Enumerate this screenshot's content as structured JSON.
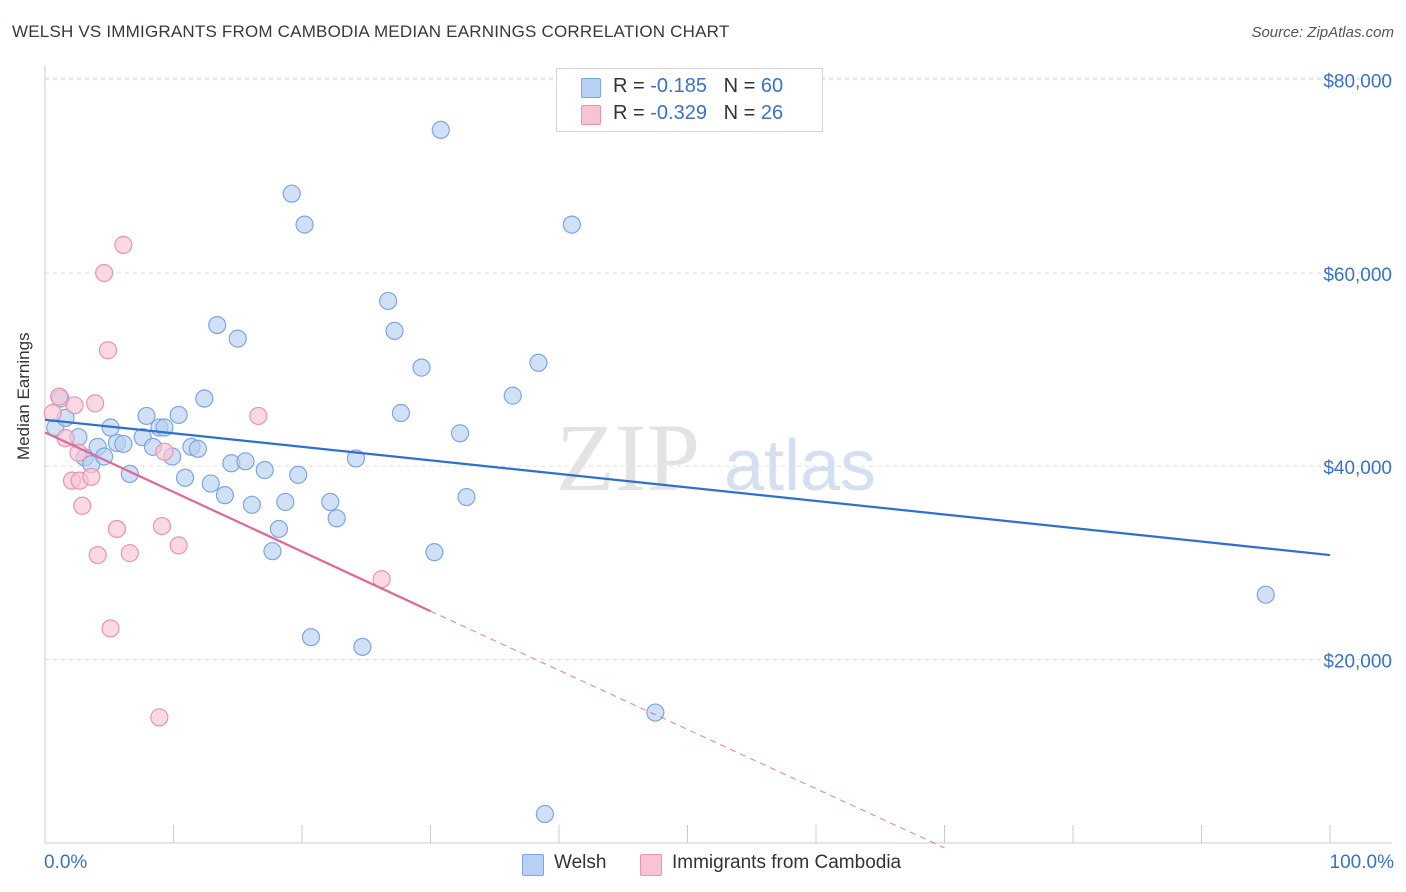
{
  "title": "WELSH VS IMMIGRANTS FROM CAMBODIA MEDIAN EARNINGS CORRELATION CHART",
  "source": "Source: ZipAtlas.com",
  "watermark": {
    "zip": "ZIP",
    "atlas": "atlas"
  },
  "legend_top": {
    "rows": [
      {
        "r_label": "R = ",
        "r_value": "-0.185",
        "n_label": "N = ",
        "n_value": "60"
      },
      {
        "r_label": "R = ",
        "r_value": "-0.329",
        "n_label": "N = ",
        "n_value": "26"
      }
    ]
  },
  "colors": {
    "welsh_fill": "#b7d0f3",
    "welsh_stroke": "#7ea6e0",
    "welsh_line": "#2f6fce",
    "cambodia_fill": "#f7c4d4",
    "cambodia_stroke": "#eb93b0",
    "cambodia_line": "#e06893",
    "tick_label": "#3a72c5",
    "grid": "#dddddd"
  },
  "chart_data": {
    "type": "scatter",
    "title": "WELSH VS IMMIGRANTS FROM CAMBODIA MEDIAN EARNINGS CORRELATION CHART",
    "xlabel": "",
    "ylabel": "Median Earnings",
    "xlim": [
      0,
      100
    ],
    "ylim": [
      1000,
      81000
    ],
    "x_tick_labels": [
      "0.0%",
      "100.0%"
    ],
    "y_ticks": [
      20000,
      40000,
      60000,
      80000
    ],
    "y_tick_labels": [
      "$20,000",
      "$40,000",
      "$60,000",
      "$80,000"
    ],
    "grid": "horizontal dashed",
    "legend_position": "bottom",
    "series": [
      {
        "name": "Welsh",
        "points": [
          [
            0.8,
            44000
          ],
          [
            1.2,
            47000
          ],
          [
            1.6,
            45000
          ],
          [
            2.6,
            43000
          ],
          [
            3.1,
            40900
          ],
          [
            3.6,
            40200
          ],
          [
            4.1,
            42000
          ],
          [
            4.6,
            41000
          ],
          [
            5.1,
            44000
          ],
          [
            5.6,
            42400
          ],
          [
            6.1,
            42300
          ],
          [
            6.6,
            39200
          ],
          [
            7.6,
            43000
          ],
          [
            7.9,
            45200
          ],
          [
            8.4,
            42000
          ],
          [
            8.9,
            44000
          ],
          [
            9.3,
            44000
          ],
          [
            9.9,
            41000
          ],
          [
            10.4,
            45300
          ],
          [
            10.9,
            38800
          ],
          [
            11.4,
            42000
          ],
          [
            11.9,
            41800
          ],
          [
            12.4,
            47000
          ],
          [
            12.9,
            38200
          ],
          [
            13.4,
            54600
          ],
          [
            14.0,
            37000
          ],
          [
            14.5,
            40300
          ],
          [
            15.0,
            53200
          ],
          [
            15.6,
            40500
          ],
          [
            16.1,
            36000
          ],
          [
            17.1,
            39600
          ],
          [
            17.7,
            31200
          ],
          [
            18.2,
            33500
          ],
          [
            18.7,
            36300
          ],
          [
            19.2,
            68200
          ],
          [
            19.7,
            39100
          ],
          [
            20.2,
            65000
          ],
          [
            20.7,
            22300
          ],
          [
            22.2,
            36300
          ],
          [
            22.7,
            34600
          ],
          [
            24.2,
            40800
          ],
          [
            24.7,
            21300
          ],
          [
            26.7,
            57100
          ],
          [
            27.2,
            54000
          ],
          [
            27.7,
            45500
          ],
          [
            29.3,
            50200
          ],
          [
            30.3,
            31100
          ],
          [
            30.8,
            74800
          ],
          [
            32.3,
            43400
          ],
          [
            32.8,
            36800
          ],
          [
            36.4,
            47300
          ],
          [
            38.4,
            50700
          ],
          [
            38.9,
            4000
          ],
          [
            41.0,
            65000
          ],
          [
            47.5,
            14500
          ],
          [
            95.0,
            26700
          ]
        ],
        "trend": {
          "x": [
            0,
            100
          ],
          "y": [
            44800,
            30800
          ]
        }
      },
      {
        "name": "Immigrants from Cambodia",
        "points": [
          [
            0.6,
            45500
          ],
          [
            1.1,
            47200
          ],
          [
            1.6,
            42900
          ],
          [
            2.1,
            38500
          ],
          [
            2.3,
            46300
          ],
          [
            2.6,
            41400
          ],
          [
            2.7,
            38500
          ],
          [
            2.9,
            35900
          ],
          [
            3.6,
            38900
          ],
          [
            3.9,
            46500
          ],
          [
            4.1,
            30800
          ],
          [
            4.6,
            60000
          ],
          [
            4.9,
            52000
          ],
          [
            5.1,
            23200
          ],
          [
            5.6,
            33500
          ],
          [
            6.1,
            62900
          ],
          [
            6.6,
            31000
          ],
          [
            8.9,
            14000
          ],
          [
            9.1,
            33800
          ],
          [
            9.3,
            41500
          ],
          [
            10.4,
            31800
          ],
          [
            16.6,
            45200
          ],
          [
            26.2,
            28300
          ]
        ],
        "trend": {
          "x": [
            0,
            30
          ],
          "y": [
            43500,
            25000
          ]
        },
        "trend_extension": {
          "x": [
            30,
            70
          ],
          "y": [
            25000,
            500
          ]
        }
      }
    ]
  },
  "legend_bottom": [
    {
      "label": "Welsh"
    },
    {
      "label": "Immigrants from Cambodia"
    }
  ]
}
